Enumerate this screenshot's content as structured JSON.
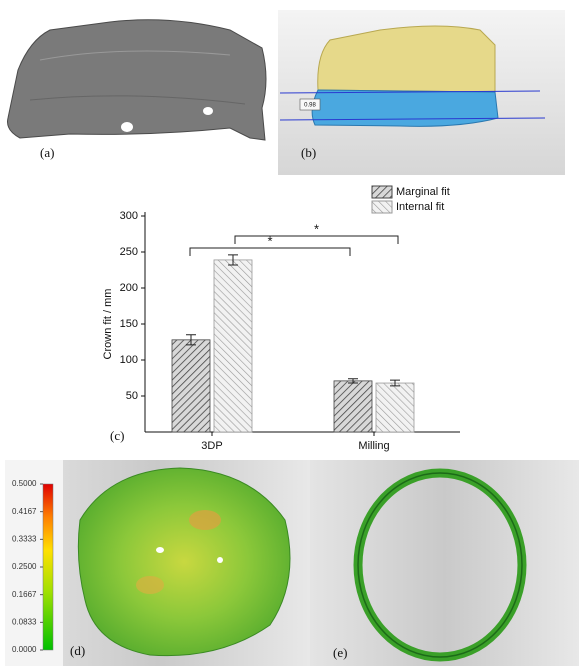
{
  "chart_data": {
    "type": "bar",
    "categories": [
      "3DP",
      "Milling"
    ],
    "series": [
      {
        "name": "Marginal fit",
        "color": "#444444",
        "values": [
          128,
          71
        ],
        "errors": [
          7,
          3
        ]
      },
      {
        "name": "Internal fit",
        "color": "#999999",
        "values": [
          239,
          68
        ],
        "errors": [
          7,
          4
        ]
      }
    ],
    "ylabel": "Crown fit / mm",
    "ylim": [
      0,
      300
    ],
    "yticks": [
      50,
      100,
      150,
      200,
      250,
      300
    ],
    "annotations": [
      "*",
      "*"
    ],
    "legend": "top-right"
  },
  "panels": {
    "a": "(a)",
    "b": "(b)",
    "c": "(c)",
    "d": "(d)",
    "e": "(e)",
    "b_marker": "0.98"
  },
  "colorbar": {
    "ticks": [
      {
        "value": 0.5,
        "label": "0.5000"
      },
      {
        "value": 0.4167,
        "label": "0.4167"
      },
      {
        "value": 0.3333,
        "label": "0.3333"
      },
      {
        "value": 0.25,
        "label": "0.2500"
      },
      {
        "value": 0.1667,
        "label": "0.1667"
      },
      {
        "value": 0.0833,
        "label": "0.0833"
      },
      {
        "value": 0,
        "label": "0.0000"
      }
    ]
  }
}
